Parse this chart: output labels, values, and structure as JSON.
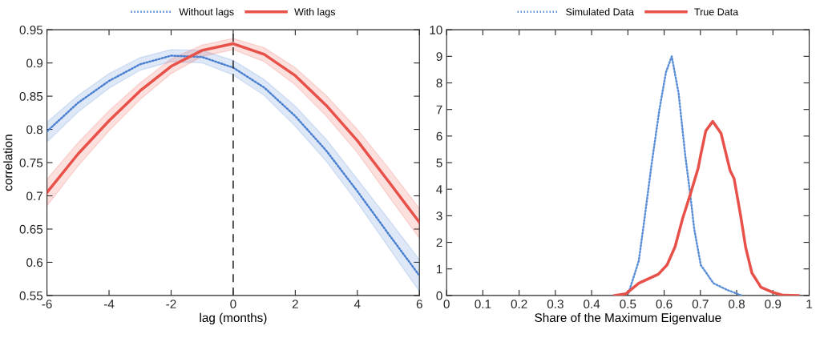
{
  "chart_data": [
    {
      "type": "line",
      "xlabel": "lag (months)",
      "ylabel": "correlation",
      "x": [
        -6,
        -5,
        -4,
        -3,
        -2,
        -1,
        0,
        1,
        2,
        3,
        4,
        5,
        6
      ],
      "series": [
        {
          "name": "Without lags",
          "color": "#4a7fd0",
          "line_style": "dotted",
          "values": [
            0.797,
            0.84,
            0.873,
            0.898,
            0.911,
            0.909,
            0.893,
            0.863,
            0.82,
            0.768,
            0.707,
            0.643,
            0.58
          ],
          "lower": [
            0.781,
            0.826,
            0.862,
            0.889,
            0.902,
            0.9,
            0.882,
            0.851,
            0.805,
            0.752,
            0.69,
            0.623,
            0.556
          ],
          "upper": [
            0.811,
            0.851,
            0.884,
            0.908,
            0.92,
            0.919,
            0.904,
            0.875,
            0.835,
            0.785,
            0.725,
            0.665,
            0.604
          ]
        },
        {
          "name": "With lags",
          "color": "#e8514a",
          "line_style": "solid",
          "values": [
            0.705,
            0.763,
            0.813,
            0.858,
            0.895,
            0.919,
            0.929,
            0.913,
            0.881,
            0.836,
            0.783,
            0.722,
            0.66
          ],
          "lower": [
            0.685,
            0.745,
            0.798,
            0.845,
            0.884,
            0.91,
            0.92,
            0.902,
            0.867,
            0.82,
            0.765,
            0.7,
            0.636
          ],
          "upper": [
            0.725,
            0.78,
            0.828,
            0.87,
            0.906,
            0.927,
            0.937,
            0.923,
            0.893,
            0.851,
            0.8,
            0.742,
            0.681
          ]
        }
      ],
      "ref_lines": [
        {
          "axis": "x",
          "value": 0,
          "color": "#333333",
          "line_style": "dashed"
        }
      ],
      "xlim": [
        -6,
        6
      ],
      "xticks": [
        -6,
        -4,
        -2,
        0,
        2,
        4,
        6
      ],
      "ylim": [
        0.55,
        0.95
      ],
      "yticks": [
        0.55,
        0.6,
        0.65,
        0.7,
        0.75,
        0.8,
        0.85,
        0.9,
        0.95
      ],
      "grid": false,
      "legend": "top",
      "marker": "none"
    },
    {
      "type": "line",
      "xlabel": "Share of the Maximum Eigenvalue",
      "series": [
        {
          "name": "Simulated Data",
          "color": "#5b8fd6",
          "line_style": "dotted",
          "x": [
            0.502,
            0.53,
            0.545,
            0.566,
            0.587,
            0.605,
            0.621,
            0.64,
            0.658,
            0.672,
            0.683,
            0.701,
            0.736,
            0.772,
            0.814
          ],
          "values": [
            0.1,
            1.3,
            2.8,
            5.0,
            7.0,
            8.4,
            9.0,
            7.6,
            5.3,
            3.8,
            2.5,
            1.15,
            0.46,
            0.22,
            0
          ]
        },
        {
          "name": "True Data",
          "color": "#e8514a",
          "line_style": "solid",
          "x": [
            0.463,
            0.495,
            0.53,
            0.584,
            0.608,
            0.63,
            0.651,
            0.672,
            0.694,
            0.701,
            0.715,
            0.734,
            0.757,
            0.782,
            0.793,
            0.811,
            0.825,
            0.842,
            0.867,
            0.899,
            0.928,
            0.97
          ],
          "values": [
            0,
            0.07,
            0.46,
            0.8,
            1.15,
            1.83,
            2.9,
            3.8,
            4.8,
            5.3,
            6.2,
            6.55,
            6.1,
            4.7,
            4.4,
            3.0,
            1.8,
            0.85,
            0.31,
            0.12,
            0.01,
            0
          ]
        }
      ],
      "xlim": [
        0,
        1
      ],
      "xticks": [
        0,
        0.1,
        0.2,
        0.3,
        0.4,
        0.5,
        0.6,
        0.7,
        0.8,
        0.9,
        1
      ],
      "ylim": [
        0,
        10
      ],
      "yticks": [
        0,
        1,
        2,
        3,
        4,
        5,
        6,
        7,
        8,
        9,
        10
      ],
      "grid": false,
      "legend": "top",
      "marker": "none"
    }
  ]
}
